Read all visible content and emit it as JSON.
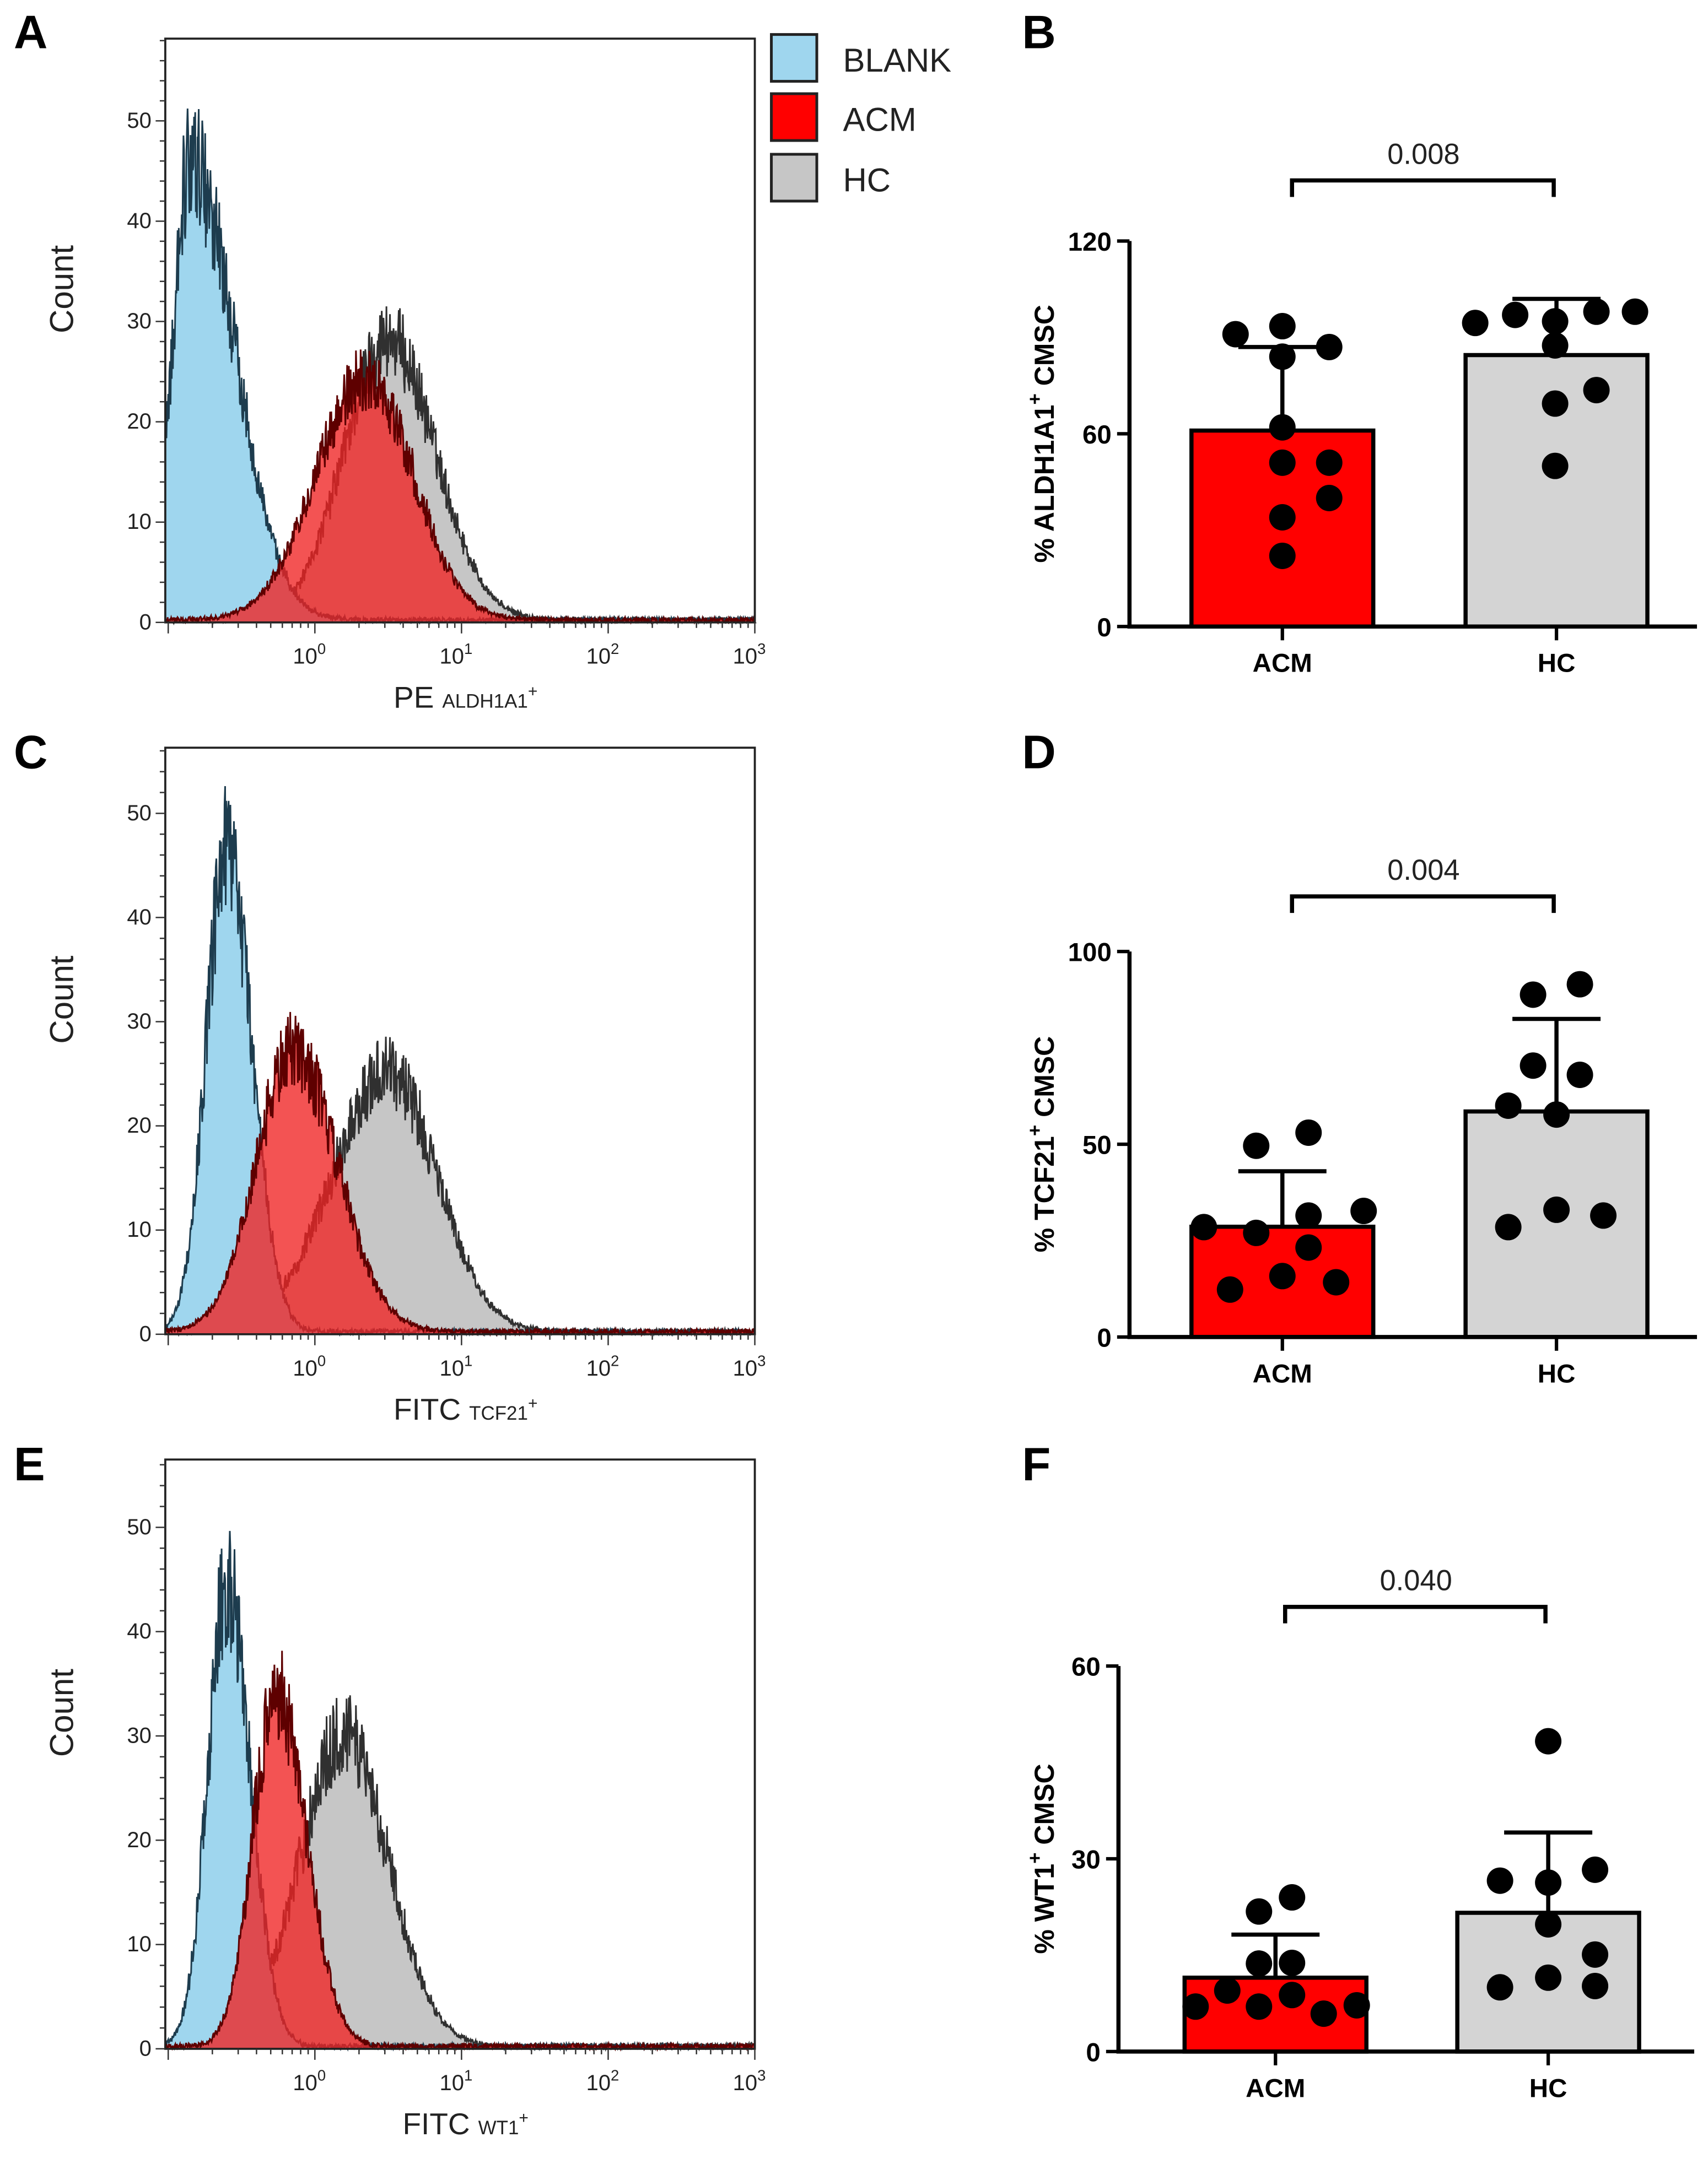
{
  "panel_labels": [
    "A",
    "B",
    "C",
    "D",
    "E",
    "F"
  ],
  "legend": [
    {
      "label": "BLANK",
      "color": "#9fd6ee"
    },
    {
      "label": "ACM",
      "color": "#ff0000"
    },
    {
      "label": "HC",
      "color": "#c6c6c6"
    }
  ],
  "chart_data": [
    {
      "panel": "A",
      "type": "area",
      "kind": "flow-cytometry-histogram",
      "ylabel": "Count",
      "xlabel": "PE",
      "xlabel_sub": "ALDH1A1",
      "xlabel_sup": "+",
      "x_scale": "log10",
      "xlim_log10": [
        -1.02,
        3.0
      ],
      "ylim": [
        0,
        58.2
      ],
      "yticks": [
        0,
        10,
        20,
        30,
        40,
        50
      ],
      "xticks": [
        {
          "base": "10",
          "exp": "0"
        },
        {
          "base": "10",
          "exp": "1"
        },
        {
          "base": "10",
          "exp": "2"
        },
        {
          "base": "10",
          "exp": "3"
        }
      ],
      "series": [
        {
          "name": "HC",
          "peak_log10": 0.5,
          "peak_count": 28,
          "sigma_left": 0.3,
          "sigma_right": 0.32
        },
        {
          "name": "BLANK",
          "peak_log10": -0.85,
          "peak_count": 46,
          "sigma_left": 0.12,
          "sigma_right": 0.3
        },
        {
          "name": "ACM",
          "peak_log10": 0.35,
          "peak_count": 24,
          "sigma_left": 0.34,
          "sigma_right": 0.32
        }
      ]
    },
    {
      "panel": "B",
      "type": "bar",
      "ylabel": "% ALDH1A1",
      "ylabel_sup": "+",
      "ylabel_suffix": " CMSC",
      "categories": [
        "ACM",
        "HC"
      ],
      "ylim": [
        0,
        120
      ],
      "yticks": [
        0,
        60,
        120
      ],
      "means": [
        61,
        84.5
      ],
      "sd_upper": [
        87,
        102
      ],
      "points": [
        [
          93.5,
          91,
          87,
          84,
          62,
          51,
          51,
          40,
          34,
          22
        ],
        [
          94.5,
          97,
          95,
          98,
          98,
          87.5,
          73.6,
          69.4,
          50
        ]
      ],
      "p_value": "0.008"
    },
    {
      "panel": "C",
      "type": "area",
      "kind": "flow-cytometry-histogram",
      "ylabel": "Count",
      "xlabel": "FITC",
      "xlabel_sub": "TCF21",
      "xlabel_sup": "+",
      "x_scale": "log10",
      "xlim_log10": [
        -1.02,
        3.0
      ],
      "ylim": [
        0,
        56.3
      ],
      "yticks": [
        0,
        10,
        20,
        30,
        40,
        50
      ],
      "xticks": [
        {
          "base": "10",
          "exp": "0"
        },
        {
          "base": "10",
          "exp": "1"
        },
        {
          "base": "10",
          "exp": "2"
        },
        {
          "base": "10",
          "exp": "3"
        }
      ],
      "series": [
        {
          "name": "HC",
          "peak_log10": 0.5,
          "peak_count": 25,
          "sigma_left": 0.38,
          "sigma_right": 0.33
        },
        {
          "name": "BLANK",
          "peak_log10": -0.6,
          "peak_count": 46,
          "sigma_left": 0.14,
          "sigma_right": 0.17
        },
        {
          "name": "ACM",
          "peak_log10": -0.15,
          "peak_count": 27,
          "sigma_left": 0.25,
          "sigma_right": 0.3
        }
      ]
    },
    {
      "panel": "D",
      "type": "bar",
      "ylabel": "% TCF21",
      "ylabel_sup": "+",
      "ylabel_suffix": " CMSC",
      "categories": [
        "ACM",
        "HC"
      ],
      "ylim": [
        0,
        100
      ],
      "yticks": [
        0,
        50,
        100
      ],
      "means": [
        28.6,
        58.5
      ],
      "sd_upper": [
        43,
        82.5
      ],
      "points": [
        [
          28.5,
          27,
          31.5,
          32.7,
          49.6,
          53,
          23.2,
          15.8,
          12.3,
          14.2
        ],
        [
          88.8,
          91.5,
          70.4,
          68,
          60,
          57.7,
          33,
          31.5,
          28.5
        ]
      ],
      "p_value": "0.004"
    },
    {
      "panel": "E",
      "type": "area",
      "kind": "flow-cytometry-histogram",
      "ylabel": "Count",
      "xlabel": "FITC",
      "xlabel_sub": "WT1",
      "xlabel_sup": "+",
      "x_scale": "log10",
      "xlim_log10": [
        -1.02,
        3.0
      ],
      "ylim": [
        0,
        56.5
      ],
      "yticks": [
        0,
        10,
        20,
        30,
        40,
        50
      ],
      "xticks": [
        {
          "base": "10",
          "exp": "0"
        },
        {
          "base": "10",
          "exp": "1"
        },
        {
          "base": "10",
          "exp": "2"
        },
        {
          "base": "10",
          "exp": "3"
        }
      ],
      "series": [
        {
          "name": "HC",
          "peak_log10": 0.2,
          "peak_count": 30,
          "sigma_left": 0.3,
          "sigma_right": 0.3
        },
        {
          "name": "BLANK",
          "peak_log10": -0.6,
          "peak_count": 44,
          "sigma_left": 0.13,
          "sigma_right": 0.16
        },
        {
          "name": "ACM",
          "peak_log10": -0.26,
          "peak_count": 34,
          "sigma_left": 0.16,
          "sigma_right": 0.2
        }
      ]
    },
    {
      "panel": "F",
      "type": "bar",
      "ylabel": "% WT1",
      "ylabel_sup": "+",
      "ylabel_suffix": " CMSC",
      "categories": [
        "ACM",
        "HC"
      ],
      "ylim": [
        0,
        60
      ],
      "yticks": [
        0,
        30,
        60
      ],
      "means": [
        11.5,
        21.6
      ],
      "sd_upper": [
        18.2,
        34.1
      ],
      "points": [
        [
          7,
          9.5,
          7,
          8.8,
          5.9,
          7.2,
          13.7,
          13.8,
          21.8,
          24
        ],
        [
          48.3,
          26.6,
          26.3,
          28.3,
          19.8,
          15.1,
          11.5,
          10,
          10.2
        ]
      ],
      "p_value": "0.040"
    }
  ]
}
